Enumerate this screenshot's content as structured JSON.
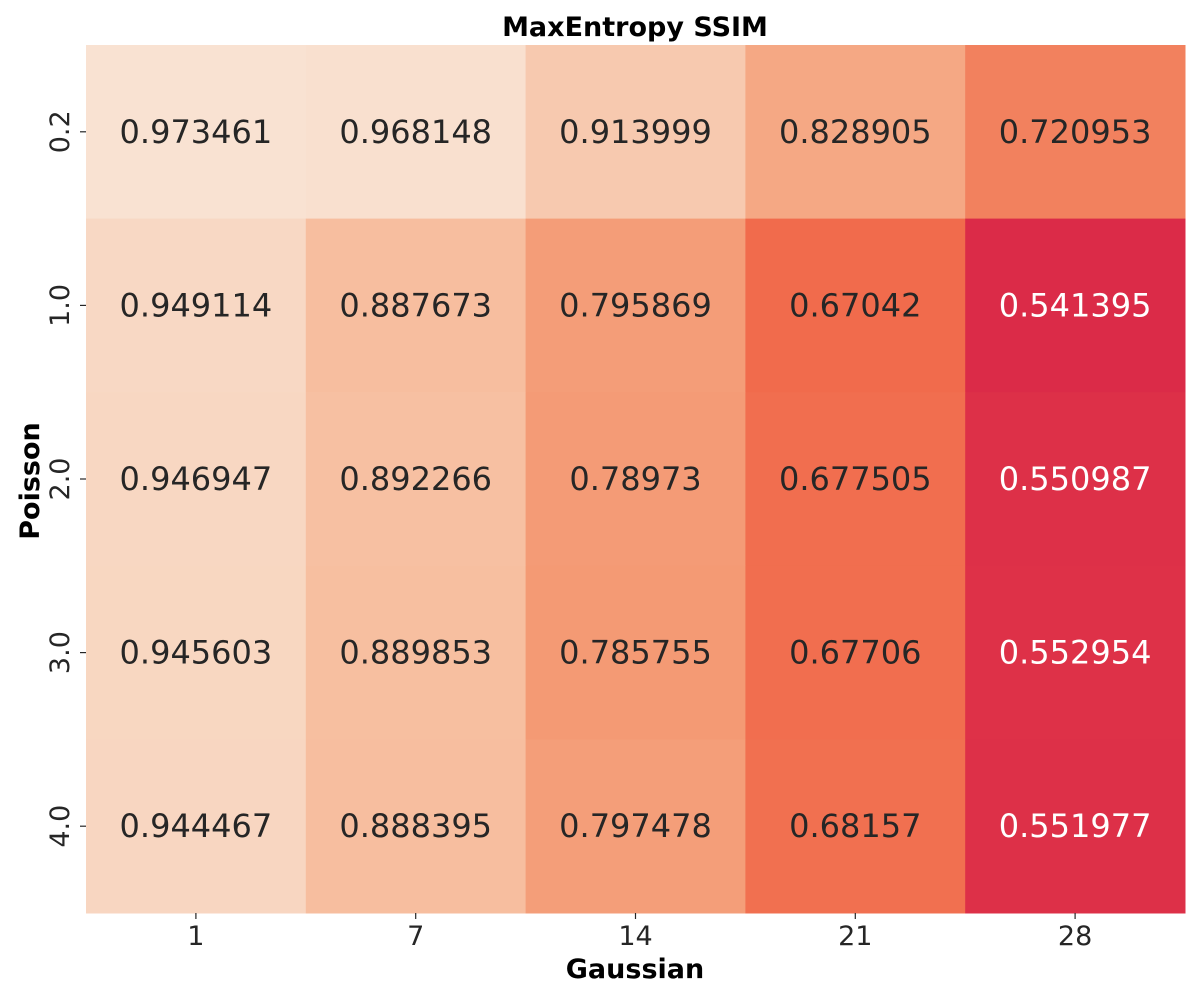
{
  "chart_data": {
    "type": "heatmap",
    "title": "MaxEntropy SSIM",
    "xlabel": "Gaussian",
    "ylabel": "Poisson",
    "x_categories": [
      "1",
      "7",
      "14",
      "21",
      "28"
    ],
    "y_categories": [
      "0.2",
      "1.0",
      "2.0",
      "3.0",
      "4.0"
    ],
    "values": [
      [
        "0.973461",
        "0.968148",
        "0.913999",
        "0.828905",
        "0.720953"
      ],
      [
        "0.949114",
        "0.887673",
        "0.795869",
        "0.67042",
        "0.541395"
      ],
      [
        "0.946947",
        "0.892266",
        "0.78973",
        "0.677505",
        "0.550987"
      ],
      [
        "0.945603",
        "0.889853",
        "0.785755",
        "0.67706",
        "0.552954"
      ],
      [
        "0.944467",
        "0.888395",
        "0.797478",
        "0.68157",
        "0.551977"
      ]
    ],
    "colormap_stops": [
      "#f9e3d3",
      "#f6b592",
      "#f3906a",
      "#f06245",
      "#db2a48"
    ],
    "color_range": [
      0.54,
      0.975
    ],
    "colorbar": false
  }
}
